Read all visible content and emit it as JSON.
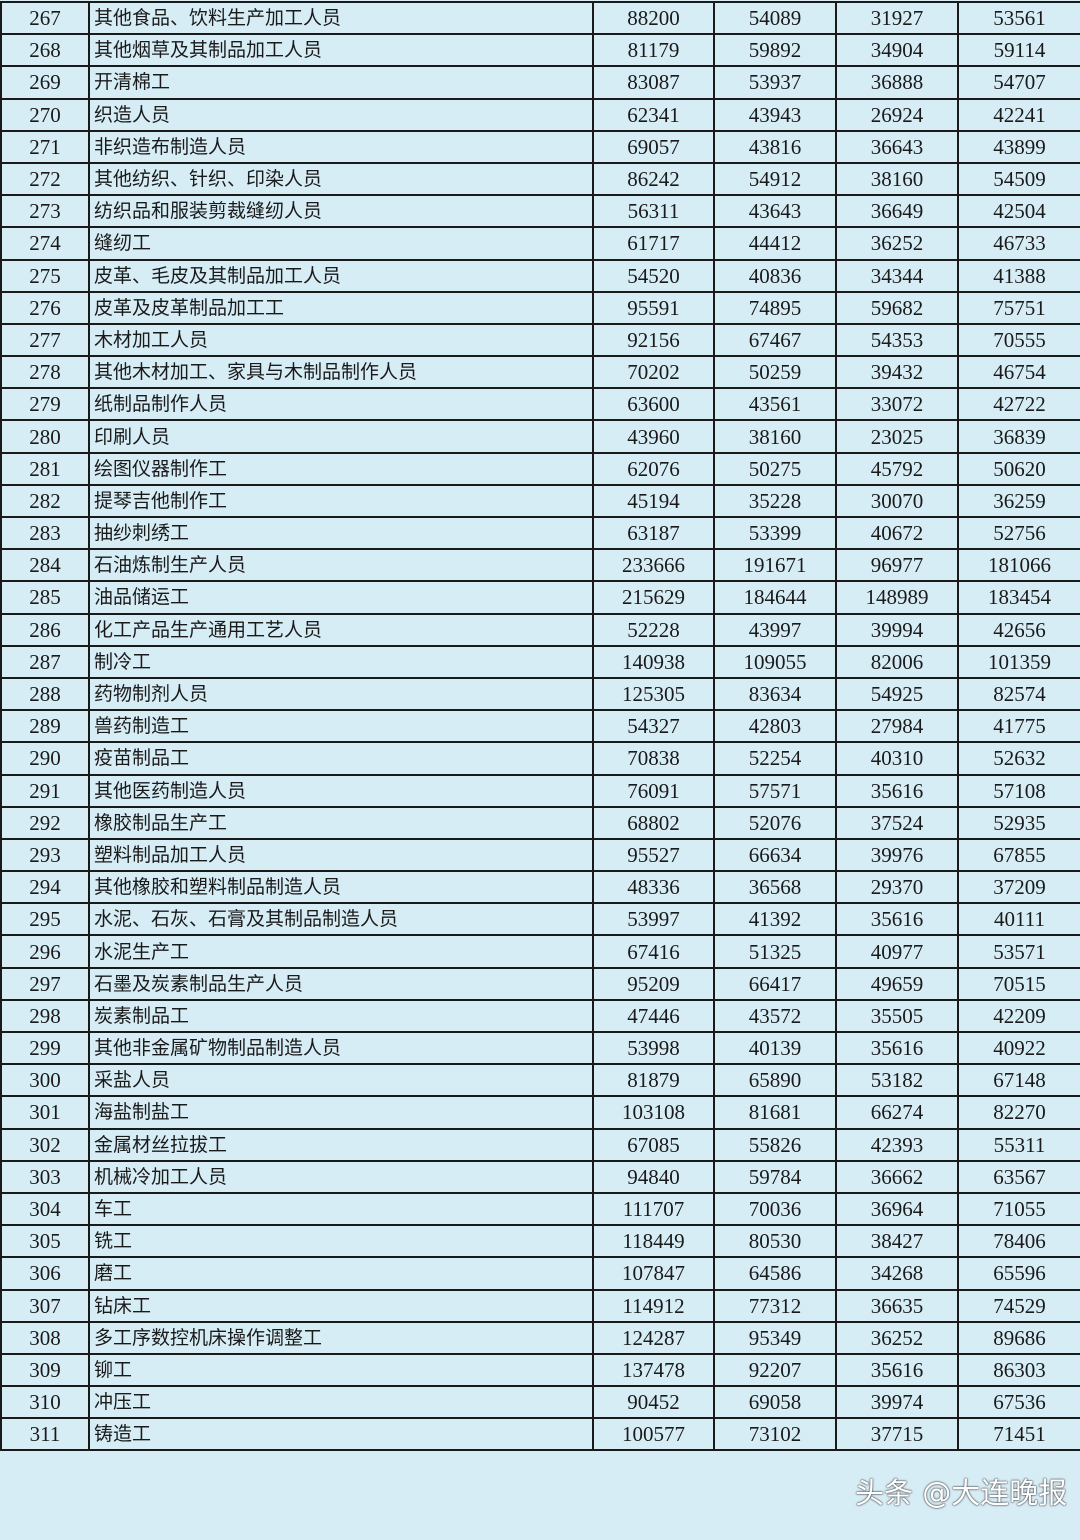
{
  "table": {
    "rows": [
      [
        "267",
        "其他食品、饮料生产加工人员",
        "88200",
        "54089",
        "31927",
        "53561"
      ],
      [
        "268",
        "其他烟草及其制品加工人员",
        "81179",
        "59892",
        "34904",
        "59114"
      ],
      [
        "269",
        "开清棉工",
        "83087",
        "53937",
        "36888",
        "54707"
      ],
      [
        "270",
        "织造人员",
        "62341",
        "43943",
        "26924",
        "42241"
      ],
      [
        "271",
        "非织造布制造人员",
        "69057",
        "43816",
        "36643",
        "43899"
      ],
      [
        "272",
        "其他纺织、针织、印染人员",
        "86242",
        "54912",
        "38160",
        "54509"
      ],
      [
        "273",
        "纺织品和服装剪裁缝纫人员",
        "56311",
        "43643",
        "36649",
        "42504"
      ],
      [
        "274",
        "缝纫工",
        "61717",
        "44412",
        "36252",
        "46733"
      ],
      [
        "275",
        "皮革、毛皮及其制品加工人员",
        "54520",
        "40836",
        "34344",
        "41388"
      ],
      [
        "276",
        "皮革及皮革制品加工工",
        "95591",
        "74895",
        "59682",
        "75751"
      ],
      [
        "277",
        "木材加工人员",
        "92156",
        "67467",
        "54353",
        "70555"
      ],
      [
        "278",
        "其他木材加工、家具与木制品制作人员",
        "70202",
        "50259",
        "39432",
        "46754"
      ],
      [
        "279",
        "纸制品制作人员",
        "63600",
        "43561",
        "33072",
        "42722"
      ],
      [
        "280",
        "印刷人员",
        "43960",
        "38160",
        "23025",
        "36839"
      ],
      [
        "281",
        "绘图仪器制作工",
        "62076",
        "50275",
        "45792",
        "50620"
      ],
      [
        "282",
        "提琴吉他制作工",
        "45194",
        "35228",
        "30070",
        "36259"
      ],
      [
        "283",
        "抽纱刺绣工",
        "63187",
        "53399",
        "40672",
        "52756"
      ],
      [
        "284",
        "石油炼制生产人员",
        "233666",
        "191671",
        "96977",
        "181066"
      ],
      [
        "285",
        "油品储运工",
        "215629",
        "184644",
        "148989",
        "183454"
      ],
      [
        "286",
        "化工产品生产通用工艺人员",
        "52228",
        "43997",
        "39994",
        "42656"
      ],
      [
        "287",
        "制冷工",
        "140938",
        "109055",
        "82006",
        "101359"
      ],
      [
        "288",
        "药物制剂人员",
        "125305",
        "83634",
        "54925",
        "82574"
      ],
      [
        "289",
        "兽药制造工",
        "54327",
        "42803",
        "27984",
        "41775"
      ],
      [
        "290",
        "疫苗制品工",
        "70838",
        "52254",
        "40310",
        "52632"
      ],
      [
        "291",
        "其他医药制造人员",
        "76091",
        "57571",
        "35616",
        "57108"
      ],
      [
        "292",
        "橡胶制品生产工",
        "68802",
        "52076",
        "37524",
        "52935"
      ],
      [
        "293",
        "塑料制品加工人员",
        "95527",
        "66634",
        "39976",
        "67855"
      ],
      [
        "294",
        "其他橡胶和塑料制品制造人员",
        "48336",
        "36568",
        "29370",
        "37209"
      ],
      [
        "295",
        "水泥、石灰、石膏及其制品制造人员",
        "53997",
        "41392",
        "35616",
        "40111"
      ],
      [
        "296",
        "水泥生产工",
        "67416",
        "51325",
        "40977",
        "53571"
      ],
      [
        "297",
        "石墨及炭素制品生产人员",
        "95209",
        "66417",
        "49659",
        "70515"
      ],
      [
        "298",
        "炭素制品工",
        "47446",
        "43572",
        "35505",
        "42209"
      ],
      [
        "299",
        "其他非金属矿物制品制造人员",
        "53998",
        "40139",
        "35616",
        "40922"
      ],
      [
        "300",
        "采盐人员",
        "81879",
        "65890",
        "53182",
        "67148"
      ],
      [
        "301",
        "海盐制盐工",
        "103108",
        "81681",
        "66274",
        "82270"
      ],
      [
        "302",
        "金属材丝拉拔工",
        "67085",
        "55826",
        "42393",
        "55311"
      ],
      [
        "303",
        "机械冷加工人员",
        "94840",
        "59784",
        "36662",
        "63567"
      ],
      [
        "304",
        "车工",
        "111707",
        "70036",
        "36964",
        "71055"
      ],
      [
        "305",
        "铣工",
        "118449",
        "80530",
        "38427",
        "78406"
      ],
      [
        "306",
        "磨工",
        "107847",
        "64586",
        "34268",
        "65596"
      ],
      [
        "307",
        "钻床工",
        "114912",
        "77312",
        "36635",
        "74529"
      ],
      [
        "308",
        "多工序数控机床操作调整工",
        "124287",
        "95349",
        "36252",
        "89686"
      ],
      [
        "309",
        "铆工",
        "137478",
        "92207",
        "35616",
        "86303"
      ],
      [
        "310",
        "冲压工",
        "90452",
        "69058",
        "39974",
        "67536"
      ],
      [
        "311",
        "铸造工",
        "100577",
        "73102",
        "37715",
        "71451"
      ]
    ]
  },
  "watermark": "头条 @大连晚报"
}
